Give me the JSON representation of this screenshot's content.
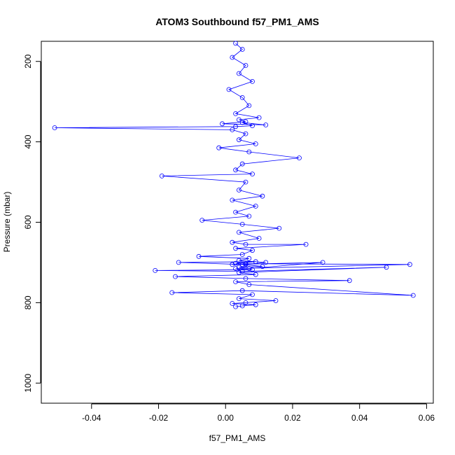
{
  "chart_data": {
    "type": "scatter",
    "title": "ATOM3 Southbound f57_PM1_AMS",
    "xlabel": "f57_PM1_AMS",
    "ylabel": "Pressure (mbar)",
    "xlim": [
      -0.055,
      0.062
    ],
    "ylim": [
      1050,
      150
    ],
    "y_reversed": true,
    "grid": false,
    "x_ticks": [
      -0.04,
      -0.02,
      0.0,
      0.02,
      0.04,
      0.06
    ],
    "x_tick_labels": [
      "-0.04",
      "-0.02",
      "0.00",
      "0.02",
      "0.04",
      "0.06"
    ],
    "y_ticks": [
      200,
      400,
      600,
      800,
      1000
    ],
    "y_tick_labels": [
      "200",
      "400",
      "600",
      "800",
      "1000"
    ],
    "marker": "open-circle",
    "connected": true,
    "color": "#0000ff",
    "series": [
      {
        "x": [
          0.003,
          0.005,
          0.002,
          0.006,
          0.004,
          0.008,
          0.001,
          0.005,
          0.007,
          0.003,
          0.01,
          0.004,
          0.006,
          -0.001,
          0.012,
          0.005,
          0.008,
          0.003,
          -0.051,
          0.002,
          0.006,
          0.004,
          0.009,
          -0.002,
          0.007,
          0.022,
          0.005,
          0.003,
          0.008,
          -0.019,
          0.006,
          0.004,
          0.011,
          0.002,
          0.009,
          0.003,
          0.007,
          -0.007,
          0.005,
          0.016,
          0.004,
          0.01,
          0.002,
          0.006,
          0.024,
          0.003,
          0.008,
          0.005,
          -0.008,
          0.007,
          0.004,
          0.012,
          0.006,
          0.003,
          0.009,
          -0.014,
          0.005,
          0.011,
          0.004,
          0.007,
          0.029,
          0.002,
          0.006,
          0.055,
          0.003,
          0.008,
          -0.021,
          0.005,
          0.048,
          0.004,
          0.009,
          -0.015,
          0.006,
          0.037,
          0.003,
          0.007,
          0.056,
          0.005,
          -0.016,
          0.008,
          0.004,
          0.015,
          0.006,
          0.002,
          0.009,
          0.005,
          0.003
        ],
        "y": [
          155,
          170,
          190,
          210,
          230,
          250,
          270,
          290,
          310,
          330,
          340,
          345,
          350,
          355,
          358,
          352,
          360,
          362,
          365,
          370,
          380,
          395,
          405,
          415,
          425,
          440,
          455,
          470,
          480,
          485,
          500,
          520,
          535,
          545,
          560,
          575,
          585,
          595,
          605,
          615,
          625,
          640,
          650,
          655,
          655,
          665,
          670,
          680,
          685,
          690,
          695,
          700,
          705,
          702,
          698,
          700,
          705,
          710,
          712,
          715,
          700,
          705,
          703,
          705,
          715,
          718,
          720,
          722,
          712,
          725,
          730,
          735,
          740,
          745,
          748,
          755,
          782,
          770,
          775,
          780,
          790,
          795,
          800,
          802,
          805,
          808,
          810
        ]
      }
    ]
  }
}
